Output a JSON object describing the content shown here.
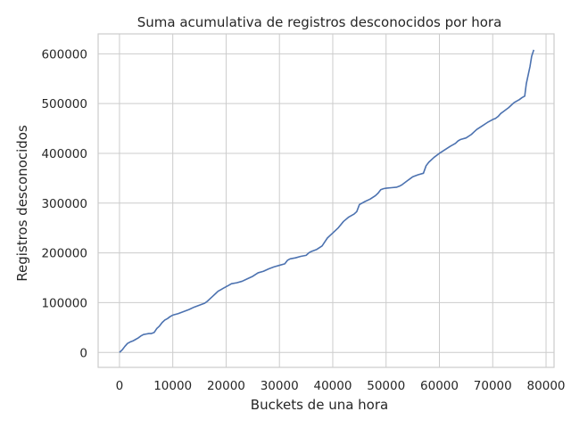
{
  "chart_data": {
    "type": "line",
    "title": "Suma acumulativa de registros desconocidos por hora",
    "xlabel": "Buckets de una hora",
    "ylabel": "Registros desconocidos",
    "xlim": [
      -4000,
      81500
    ],
    "ylim": [
      -30000,
      640000
    ],
    "xticks": [
      0,
      10000,
      20000,
      30000,
      40000,
      50000,
      60000,
      70000,
      80000
    ],
    "xtick_labels": [
      "0",
      "10000",
      "20000",
      "30000",
      "40000",
      "50000",
      "60000",
      "70000",
      "80000"
    ],
    "yticks": [
      0,
      100000,
      200000,
      300000,
      400000,
      500000,
      600000
    ],
    "ytick_labels": [
      "0",
      "100000",
      "200000",
      "300000",
      "400000",
      "500000",
      "600000"
    ],
    "grid": true,
    "legend": "none",
    "colors": {
      "line": "#4c72b0",
      "grid": "#cccccc",
      "background": "#ffffff"
    },
    "series": [
      {
        "x": [
          0,
          500,
          1000,
          1500,
          2000,
          2500,
          3000,
          3500,
          4000,
          4500,
          5000,
          5500,
          6000,
          6500,
          7000,
          7500,
          8000,
          8500,
          9000,
          9500,
          10000,
          11000,
          12000,
          13000,
          14000,
          15000,
          16000,
          16500,
          17000,
          17500,
          18000,
          18500,
          19000,
          19500,
          20000,
          20500,
          21000,
          22000,
          23000,
          24000,
          25000,
          26000,
          27000,
          28000,
          29000,
          30000,
          31000,
          31500,
          32000,
          33000,
          34000,
          35000,
          35500,
          36000,
          37000,
          38000,
          38500,
          39000,
          39500,
          40000,
          41000,
          42000,
          43000,
          44000,
          44500,
          45000,
          46000,
          47000,
          48000,
          48500,
          49000,
          49500,
          50000,
          51000,
          52000,
          52500,
          53000,
          54000,
          54500,
          55000,
          56000,
          57000,
          57500,
          58000,
          59000,
          60000,
          61000,
          62000,
          63000,
          63500,
          64000,
          65000,
          66000,
          66500,
          67000,
          68000,
          69000,
          69500,
          70000,
          70500,
          71000,
          71500,
          72000,
          73000,
          74000,
          75000,
          75500,
          76000,
          76300,
          76700,
          77000,
          77300,
          77700
        ],
        "y": [
          0,
          5000,
          12000,
          18000,
          21000,
          23000,
          26000,
          29000,
          33000,
          36000,
          37000,
          38000,
          38000,
          40000,
          48000,
          53000,
          60000,
          65000,
          68000,
          72000,
          75000,
          78000,
          82000,
          86000,
          91000,
          95000,
          99000,
          103000,
          108000,
          113000,
          118000,
          123000,
          126000,
          129000,
          132000,
          135000,
          138000,
          140000,
          143000,
          148000,
          153000,
          160000,
          163000,
          168000,
          172000,
          175000,
          178000,
          185000,
          188000,
          190000,
          193000,
          195000,
          200000,
          203000,
          207000,
          214000,
          222000,
          230000,
          235000,
          240000,
          250000,
          263000,
          272000,
          278000,
          283000,
          297000,
          303000,
          308000,
          315000,
          320000,
          327000,
          329000,
          330000,
          331000,
          332000,
          334000,
          337000,
          345000,
          349000,
          353000,
          357000,
          360000,
          375000,
          382000,
          392000,
          400000,
          407000,
          414000,
          420000,
          425000,
          428000,
          431000,
          438000,
          443000,
          448000,
          455000,
          462000,
          465000,
          468000,
          470000,
          474000,
          480000,
          484000,
          492000,
          502000,
          508000,
          512000,
          515000,
          540000,
          560000,
          575000,
          595000,
          608000
        ]
      }
    ]
  }
}
